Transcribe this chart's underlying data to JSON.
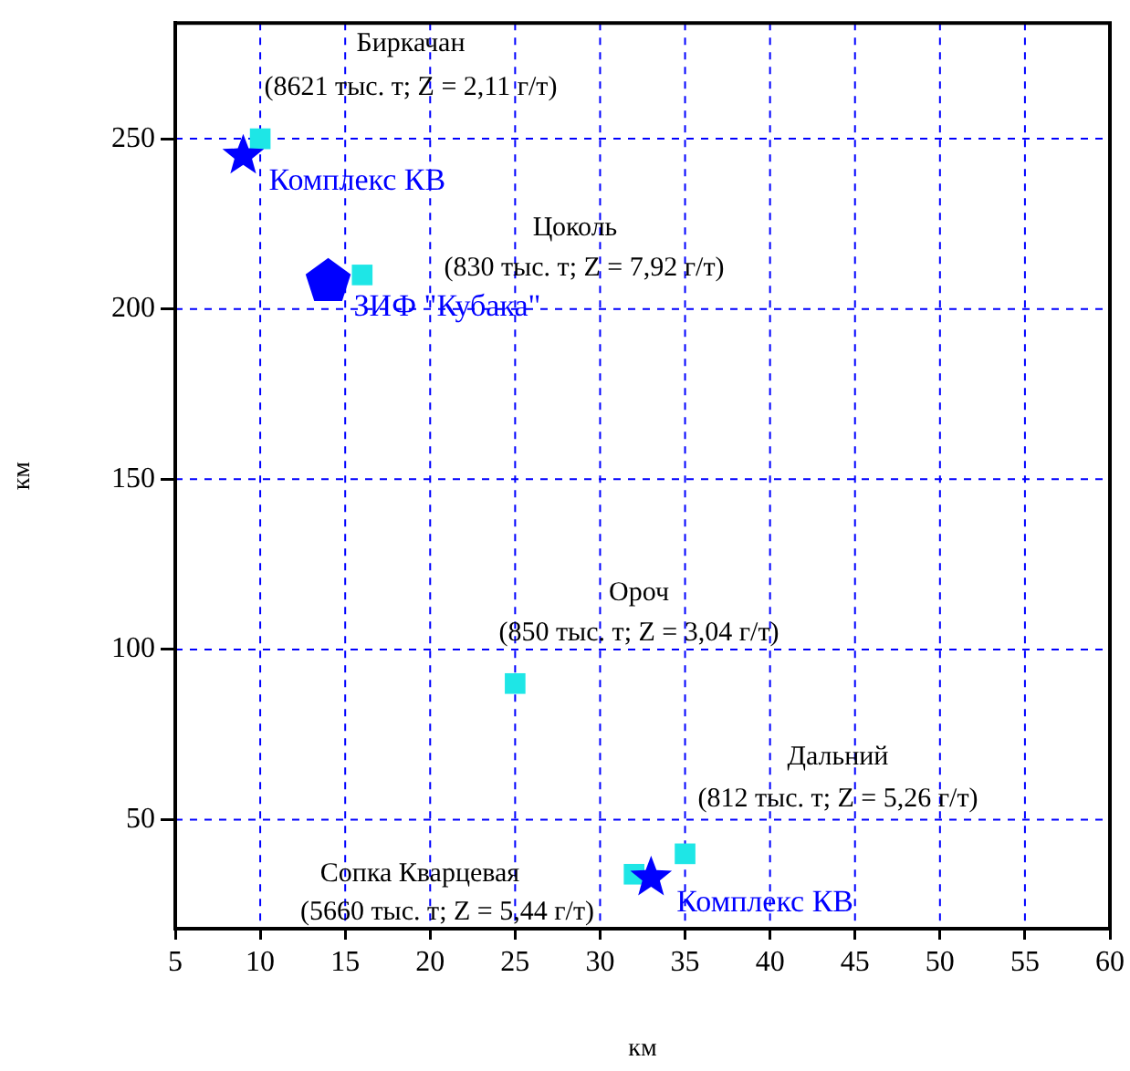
{
  "chart_data": {
    "type": "scatter",
    "xlabel": "км",
    "ylabel": "км",
    "xlim": [
      5,
      60
    ],
    "ylim": [
      18,
      284
    ],
    "xticks": [
      5,
      10,
      15,
      20,
      25,
      30,
      35,
      40,
      45,
      50,
      55,
      60
    ],
    "yticks": [
      50,
      100,
      150,
      200,
      250
    ],
    "grid": true,
    "legend": false,
    "series": [
      {
        "marker": "square",
        "color": "#1ee6e6",
        "x": [
          10,
          16,
          25,
          35,
          32
        ],
        "values": [
          250,
          210,
          90,
          40,
          34
        ]
      },
      {
        "name": "Комплекс КВ",
        "marker": "star",
        "color": "#0000ff",
        "x": [
          9
        ],
        "values": [
          245
        ]
      },
      {
        "name": "Комплекс КВ",
        "marker": "star",
        "color": "#0000ff",
        "x": [
          33
        ],
        "values": [
          33
        ]
      },
      {
        "name": "ЗИФ \"Кубака\"",
        "color": "#0000ff",
        "x": [
          14
        ],
        "values": [
          208
        ]
      }
    ],
    "annotations": [
      "Биркачан",
      "(8621 тыс. т; Z = 2,11 г/т)",
      "Цоколь",
      "(830 тыс. т; Z = 7,92 г/т)",
      "Ороч",
      "(850 тыс. т; Z = 3,04 г/т)",
      "Дальний",
      "(812 тыс. т; Z = 5,26 г/т)",
      "Сопка Кварцевая",
      "(5660 тыс. т; Z = 5,44 г/т)"
    ]
  }
}
